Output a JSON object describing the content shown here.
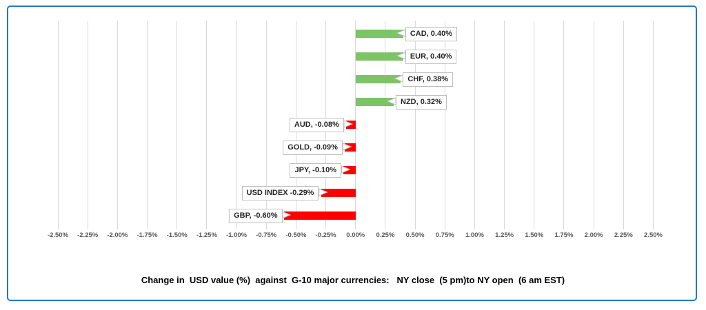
{
  "frame": {
    "border_color": "#2478C8"
  },
  "chart_data": {
    "type": "bar",
    "orientation": "horizontal",
    "title": "Change in  USD value (%)  against  G-10 major currencies:   NY close  (5 pm)to NY open  (6 am EST)",
    "categories": [
      "CAD",
      "EUR",
      "CHF",
      "NZD",
      "AUD",
      "GOLD",
      "JPY",
      "USD INDEX",
      "GBP"
    ],
    "values": [
      0.4,
      0.4,
      0.38,
      0.32,
      -0.08,
      -0.09,
      -0.1,
      -0.29,
      -0.6
    ],
    "data_labels": [
      "CAD, 0.40%",
      "EUR, 0.40%",
      "CHF, 0.38%",
      "NZD, 0.32%",
      "AUD, -0.08%",
      "GOLD, -0.09%",
      "JPY, -0.10%",
      "USD INDEX -0.29%",
      "GBP, -0.60%"
    ],
    "xlim": [
      -2.5,
      2.5
    ],
    "tick_step": 0.25,
    "tick_labels": [
      "-2.50%",
      "-2.25%",
      "-2.00%",
      "-1.75%",
      "-1.50%",
      "-1.25%",
      "-1.00%",
      "-0.75%",
      "-0.50%",
      "-0.25%",
      "0.00%",
      "0.25%",
      "0.50%",
      "0.75%",
      "1.00%",
      "1.25%",
      "1.50%",
      "1.75%",
      "2.00%",
      "2.25%",
      "2.50%"
    ],
    "grid": true,
    "legend": false,
    "colors": {
      "positive": "#7CC464",
      "negative": "#FF0000",
      "gridline": "#D9D9D9",
      "axis_text": "#595959",
      "callout_border": "#BFBFBF",
      "callout_text": "#262626",
      "title_text": "#000000"
    }
  }
}
